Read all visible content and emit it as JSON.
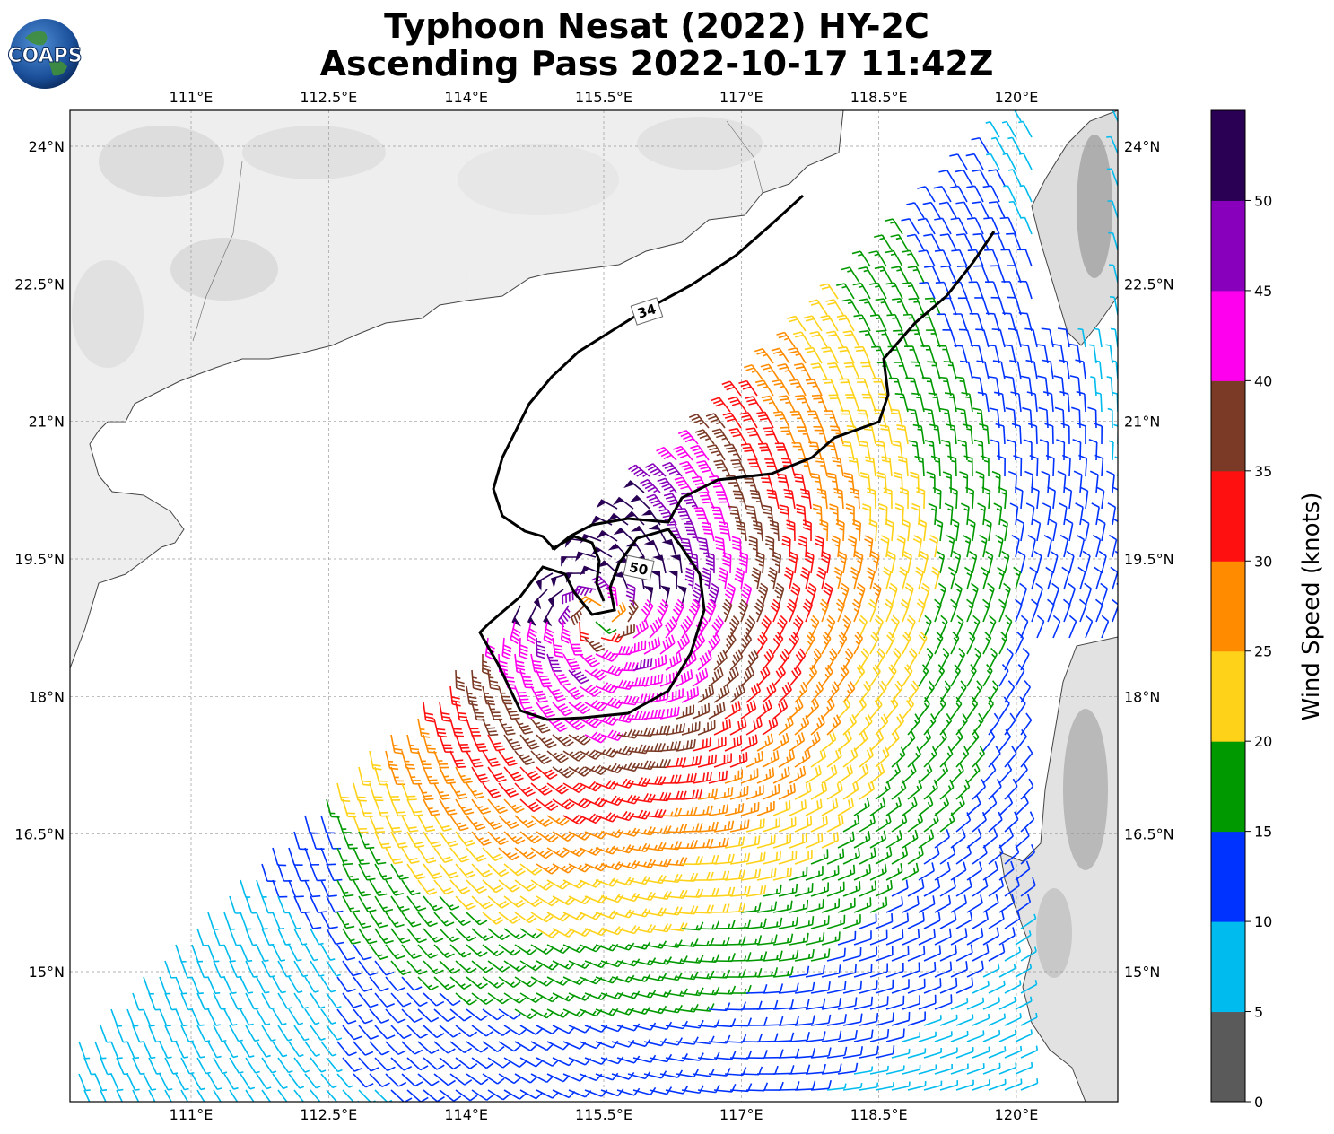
{
  "title": {
    "line1": "Typhoon Nesat (2022) HY-2C",
    "line2": "Ascending Pass 2022-10-17 11:42Z"
  },
  "logo": {
    "text": "COAPS",
    "icon": "globe-logo-icon"
  },
  "map": {
    "lon_ticks": [
      {
        "value": 111.0,
        "label": "111°E"
      },
      {
        "value": 112.5,
        "label": "112.5°E"
      },
      {
        "value": 114.0,
        "label": "114°E"
      },
      {
        "value": 115.5,
        "label": "115.5°E"
      },
      {
        "value": 117.0,
        "label": "117°E"
      },
      {
        "value": 118.5,
        "label": "118.5°E"
      },
      {
        "value": 120.0,
        "label": "120°E"
      }
    ],
    "lat_ticks": [
      {
        "value": 24.0,
        "label": "24°N"
      },
      {
        "value": 22.5,
        "label": "22.5°N"
      },
      {
        "value": 21.0,
        "label": "21°N"
      },
      {
        "value": 19.5,
        "label": "19.5°N"
      },
      {
        "value": 18.0,
        "label": "18°N"
      },
      {
        "value": 16.5,
        "label": "16.5°N"
      },
      {
        "value": 15.0,
        "label": "15°N"
      }
    ],
    "contours": [
      {
        "label": "34"
      },
      {
        "label": "50"
      }
    ],
    "storm_center": {
      "lon": 115.45,
      "lat": 18.9
    }
  },
  "colorbar": {
    "label": "Wind Speed (knots)",
    "bins": [
      {
        "min": 0,
        "max": 5,
        "color": "#5a5a5a"
      },
      {
        "min": 5,
        "max": 10,
        "color": "#00bbee"
      },
      {
        "min": 10,
        "max": 15,
        "color": "#0033ff"
      },
      {
        "min": 15,
        "max": 20,
        "color": "#009900"
      },
      {
        "min": 20,
        "max": 25,
        "color": "#ffd21a"
      },
      {
        "min": 25,
        "max": 30,
        "color": "#ff8c00"
      },
      {
        "min": 30,
        "max": 35,
        "color": "#ff1010"
      },
      {
        "min": 35,
        "max": 40,
        "color": "#7b3a26"
      },
      {
        "min": 40,
        "max": 45,
        "color": "#ff00ee"
      },
      {
        "min": 45,
        "max": 50,
        "color": "#8800bb"
      },
      {
        "min": 50,
        "max": 55,
        "color": "#2a0055"
      }
    ],
    "tick_labels": [
      "0",
      "5",
      "10",
      "15",
      "20",
      "25",
      "30",
      "35",
      "40",
      "45",
      "50"
    ]
  }
}
